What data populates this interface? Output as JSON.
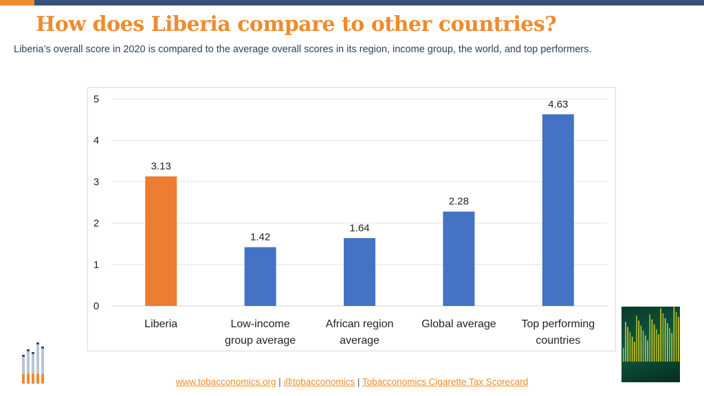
{
  "title": "How does Liberia compare to other countries?",
  "subtitle": "Liberia’s overall score in 2020 is compared to the average overall scores in its region, income group, the world, and top performers.",
  "footer": {
    "link1": "www.tobacconomics.org",
    "sep": " | ",
    "link2": "@tobacconomics",
    "link3": "Tobacconomics Cigarette Tax Scorecard"
  },
  "colors": {
    "highlight": "#ed7d31",
    "bar": "#4472c4",
    "title": "#ef8b2c",
    "topbar": "#35507a"
  },
  "chart_data": {
    "type": "bar",
    "categories": [
      [
        "Liberia"
      ],
      [
        "Low-income",
        "group average"
      ],
      [
        "African region",
        "average"
      ],
      [
        "Global average"
      ],
      [
        "Top performing",
        "countries"
      ]
    ],
    "values": [
      3.13,
      1.42,
      1.64,
      2.28,
      4.63
    ],
    "data_labels": [
      "3.13",
      "1.42",
      "1.64",
      "2.28",
      "4.63"
    ],
    "highlight_index": 0,
    "ylim": [
      0,
      5
    ],
    "yticks": [
      "0",
      "1",
      "2",
      "3",
      "4",
      "5"
    ],
    "grid": true,
    "legend": "none"
  }
}
